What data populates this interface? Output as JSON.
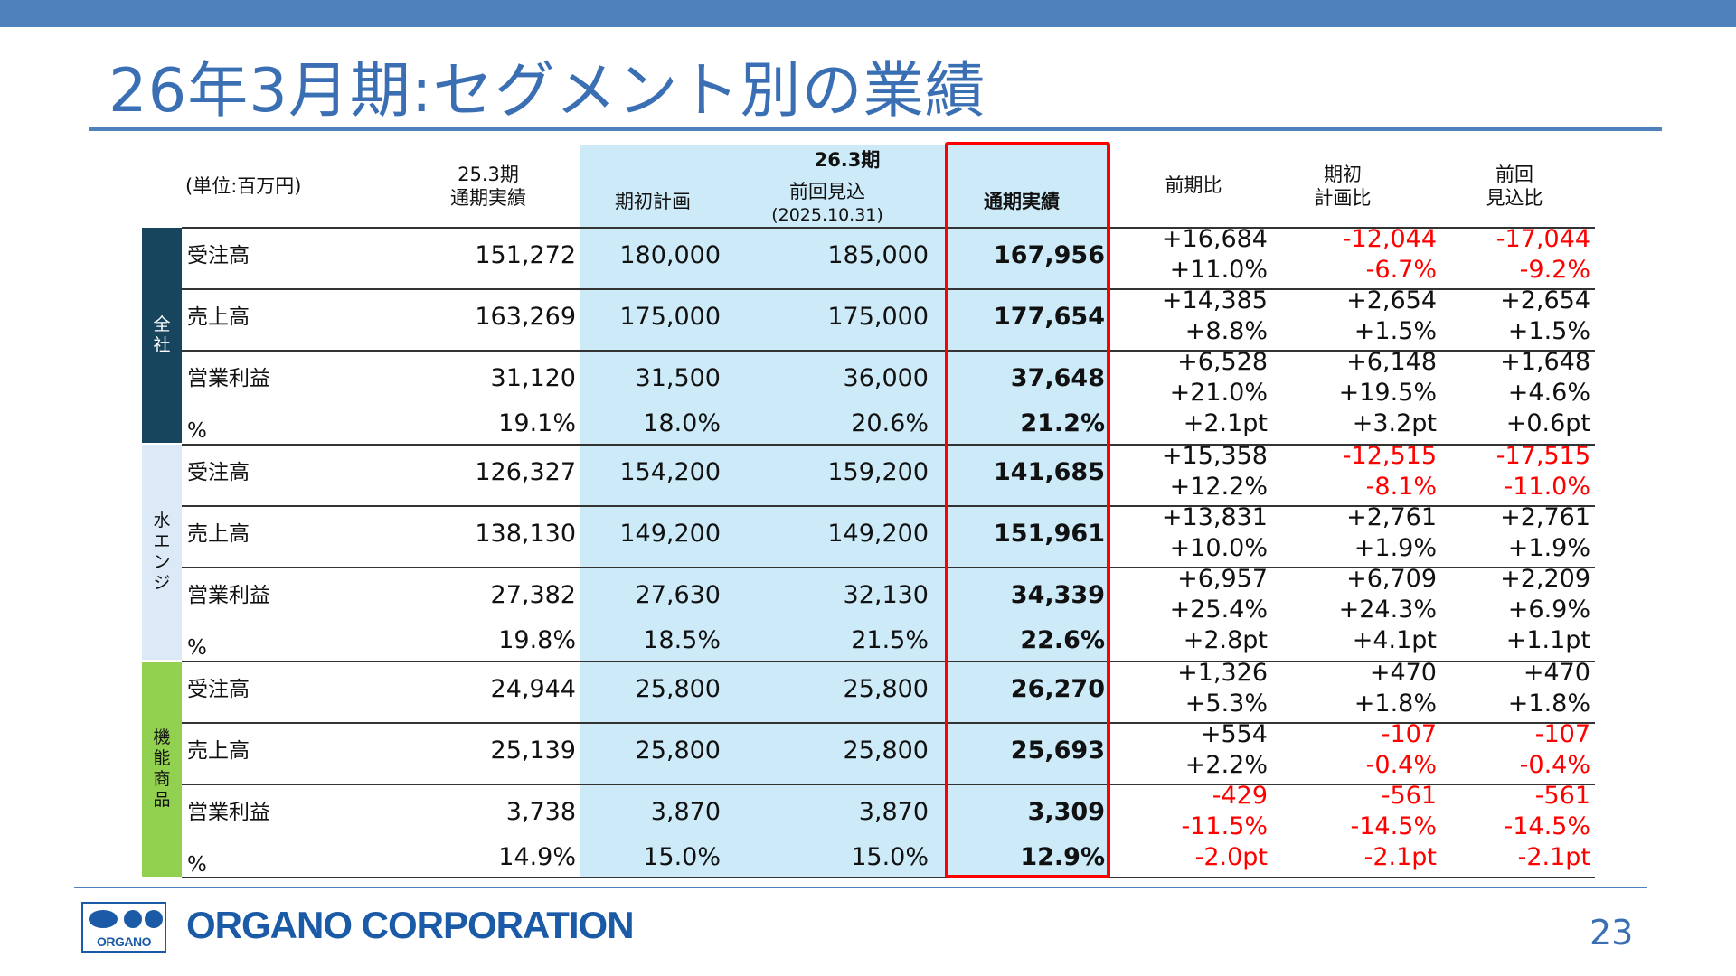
{
  "title": "26年3月期:セグメント別の業績",
  "unit": "(単位:百万円)",
  "headers": {
    "prev_year": [
      "25.3期",
      "通期実績"
    ],
    "group": "26.3期",
    "plan": "期初計画",
    "forecast": [
      "前回見込",
      "(2025.10.31)"
    ],
    "actual": "通期実績",
    "yoy": "前期比",
    "vs_plan": [
      "期初",
      "計画比"
    ],
    "vs_forecast": [
      "前回",
      "見込比"
    ]
  },
  "segments": [
    {
      "name": [
        "全",
        "社"
      ],
      "rows": [
        {
          "label": "受注高",
          "v": [
            "151,272",
            "180,000",
            "185,000",
            "167,956"
          ],
          "d1": [
            "+16,684",
            "+11.0%"
          ],
          "d2": [
            "-12,044",
            "-6.7%"
          ],
          "d3": [
            "-17,044",
            "-9.2%"
          ]
        },
        {
          "label": "売上高",
          "v": [
            "163,269",
            "175,000",
            "175,000",
            "177,654"
          ],
          "d1": [
            "+14,385",
            "+8.8%"
          ],
          "d2": [
            "+2,654",
            "+1.5%"
          ],
          "d3": [
            "+2,654",
            "+1.5%"
          ]
        },
        {
          "label": "営業利益",
          "v": [
            "31,120",
            "31,500",
            "36,000",
            "37,648"
          ],
          "d1": [
            "+6,528",
            "+21.0%"
          ],
          "d2": [
            "+6,148",
            "+19.5%"
          ],
          "d3": [
            "+1,648",
            "+4.6%"
          ]
        }
      ],
      "pct": {
        "label": "%",
        "v": [
          "19.1%",
          "18.0%",
          "20.6%",
          "21.2%"
        ],
        "d": [
          "+2.1pt",
          "+3.2pt",
          "+0.6pt"
        ]
      }
    },
    {
      "name": [
        "水",
        "エ",
        "ン",
        "ジ"
      ],
      "rows": [
        {
          "label": "受注高",
          "v": [
            "126,327",
            "154,200",
            "159,200",
            "141,685"
          ],
          "d1": [
            "+15,358",
            "+12.2%"
          ],
          "d2": [
            "-12,515",
            "-8.1%"
          ],
          "d3": [
            "-17,515",
            "-11.0%"
          ]
        },
        {
          "label": "売上高",
          "v": [
            "138,130",
            "149,200",
            "149,200",
            "151,961"
          ],
          "d1": [
            "+13,831",
            "+10.0%"
          ],
          "d2": [
            "+2,761",
            "+1.9%"
          ],
          "d3": [
            "+2,761",
            "+1.9%"
          ]
        },
        {
          "label": "営業利益",
          "v": [
            "27,382",
            "27,630",
            "32,130",
            "34,339"
          ],
          "d1": [
            "+6,957",
            "+25.4%"
          ],
          "d2": [
            "+6,709",
            "+24.3%"
          ],
          "d3": [
            "+2,209",
            "+6.9%"
          ]
        }
      ],
      "pct": {
        "label": "%",
        "v": [
          "19.8%",
          "18.5%",
          "21.5%",
          "22.6%"
        ],
        "d": [
          "+2.8pt",
          "+4.1pt",
          "+1.1pt"
        ]
      }
    },
    {
      "name": [
        "機",
        "能",
        "商",
        "品"
      ],
      "rows": [
        {
          "label": "受注高",
          "v": [
            "24,944",
            "25,800",
            "25,800",
            "26,270"
          ],
          "d1": [
            "+1,326",
            "+5.3%"
          ],
          "d2": [
            "+470",
            "+1.8%"
          ],
          "d3": [
            "+470",
            "+1.8%"
          ]
        },
        {
          "label": "売上高",
          "v": [
            "25,139",
            "25,800",
            "25,800",
            "25,693"
          ],
          "d1": [
            "+554",
            "+2.2%"
          ],
          "d2": [
            "-107",
            "-0.4%"
          ],
          "d3": [
            "-107",
            "-0.4%"
          ]
        },
        {
          "label": "営業利益",
          "v": [
            "3,738",
            "3,870",
            "3,870",
            "3,309"
          ],
          "d1": [
            "-429",
            "-11.5%"
          ],
          "d2": [
            "-561",
            "-14.5%"
          ],
          "d3": [
            "-561",
            "-14.5%"
          ]
        }
      ],
      "pct": {
        "label": "%",
        "v": [
          "14.9%",
          "15.0%",
          "15.0%",
          "12.9%"
        ],
        "d": [
          "-2.0pt",
          "-2.1pt",
          "-2.1pt"
        ]
      }
    }
  ],
  "colors": {
    "negative": "#ff0000",
    "highlight_border": "#ff0000",
    "brand_blue": "#1b5aa6"
  },
  "footer": {
    "logo_mark_text": "ORGANO",
    "logo_text": "ORGANO CORPORATION",
    "page_number": "23"
  }
}
